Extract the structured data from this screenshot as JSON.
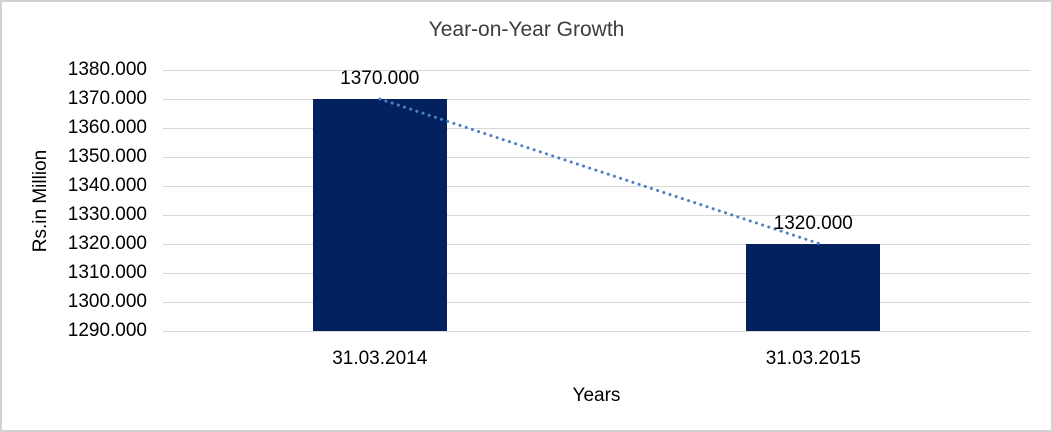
{
  "chart_data": {
    "type": "bar",
    "title": "Year-on-Year Growth",
    "xlabel": "Years",
    "ylabel": "Rs.in Million",
    "categories": [
      "31.03.2014",
      "31.03.2015"
    ],
    "values": [
      1370,
      1320
    ],
    "value_labels": [
      "1370.000",
      "1320.000"
    ],
    "ylim": [
      1290,
      1380
    ],
    "ytick_step": 10,
    "ytick_labels": [
      "1380.000",
      "1370.000",
      "1360.000",
      "1350.000",
      "1340.000",
      "1330.000",
      "1320.000",
      "1310.000",
      "1300.000",
      "1290.000"
    ],
    "grid": true,
    "legend": "none",
    "trendline": {
      "style": "dotted",
      "from_value": 1370,
      "to_value": 1320
    },
    "colors": {
      "bar": "#03215f",
      "trendline": "#4a80c4",
      "gridline": "#d7d7d7",
      "frame_border": "#d2d2d2",
      "background": "#ffffff",
      "title_text": "#3d3d3d",
      "axis_text": "#000000"
    }
  }
}
